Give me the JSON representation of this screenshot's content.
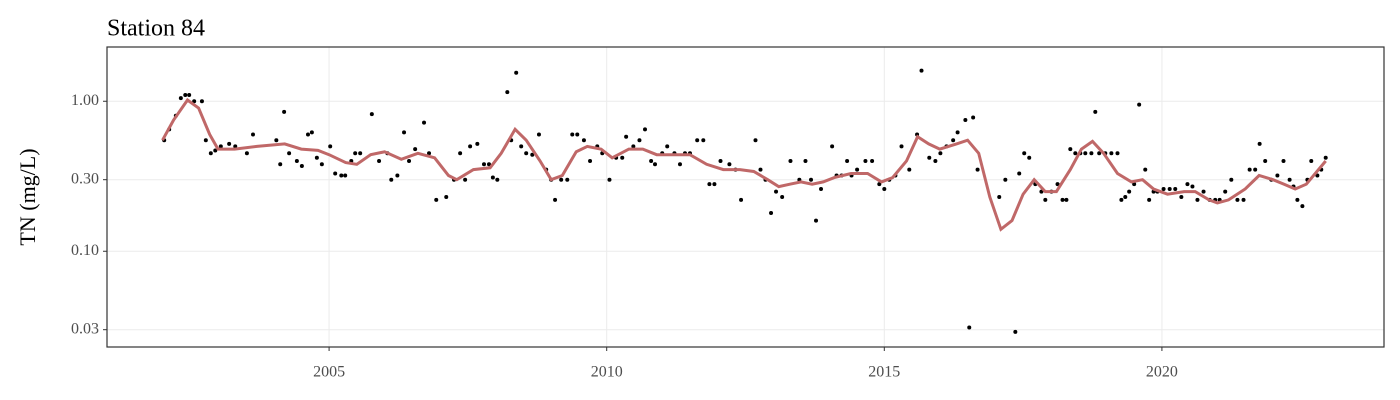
{
  "chart_data": {
    "type": "scatter",
    "title": "Station 84",
    "y_label": "TN (mg/L)",
    "log_y": true,
    "grid": true,
    "xlim": [
      2001,
      2024
    ],
    "xticks": [
      2005,
      2010,
      2015,
      2020
    ],
    "ylim": [
      0.023,
      2.3
    ],
    "yticks": [
      {
        "value": 0.03,
        "label": "0.03"
      },
      {
        "value": 0.1,
        "label": "0.10"
      },
      {
        "value": 0.3,
        "label": "0.30"
      },
      {
        "value": 1,
        "label": "1.00"
      }
    ],
    "series": [
      {
        "mode": "points",
        "color": "#000000",
        "x": [
          2002.03,
          2002.12,
          2002.24,
          2002.33,
          2002.41,
          2002.48,
          2002.57,
          2002.71,
          2002.78,
          2002.87,
          2002.95,
          2003.05,
          2003.2,
          2003.31,
          2003.52,
          2003.63,
          2004.05,
          2004.12,
          2004.19,
          2004.28,
          2004.42,
          2004.51,
          2004.62,
          2004.69,
          2004.78,
          2004.87,
          2005.02,
          2005.11,
          2005.22,
          2005.29,
          2005.4,
          2005.47,
          2005.56,
          2005.77,
          2005.9,
          2006.05,
          2006.12,
          2006.23,
          2006.35,
          2006.44,
          2006.55,
          2006.71,
          2006.8,
          2006.93,
          2007.11,
          2007.25,
          2007.36,
          2007.45,
          2007.54,
          2007.67,
          2007.79,
          2007.88,
          2007.95,
          2008.03,
          2008.21,
          2008.28,
          2008.37,
          2008.46,
          2008.55,
          2008.66,
          2008.78,
          2008.91,
          2009.0,
          2009.07,
          2009.18,
          2009.29,
          2009.38,
          2009.47,
          2009.59,
          2009.7,
          2009.83,
          2009.92,
          2010.05,
          2010.17,
          2010.28,
          2010.35,
          2010.48,
          2010.59,
          2010.69,
          2010.8,
          2010.87,
          2011.0,
          2011.09,
          2011.22,
          2011.32,
          2011.41,
          2011.5,
          2011.63,
          2011.74,
          2011.85,
          2011.94,
          2012.05,
          2012.21,
          2012.32,
          2012.42,
          2012.68,
          2012.77,
          2012.86,
          2012.96,
          2013.05,
          2013.16,
          2013.31,
          2013.47,
          2013.58,
          2013.68,
          2013.77,
          2013.86,
          2014.06,
          2014.14,
          2014.23,
          2014.33,
          2014.41,
          2014.51,
          2014.66,
          2014.78,
          2014.91,
          2015.0,
          2015.09,
          2015.2,
          2015.31,
          2015.45,
          2015.59,
          2015.67,
          2015.81,
          2015.92,
          2016.01,
          2016.12,
          2016.24,
          2016.32,
          2016.46,
          2016.53,
          2016.6,
          2016.68,
          2017.07,
          2017.18,
          2017.36,
          2017.43,
          2017.52,
          2017.61,
          2017.72,
          2017.83,
          2017.9,
          2018.01,
          2018.12,
          2018.21,
          2018.28,
          2018.35,
          2018.44,
          2018.53,
          2018.62,
          2018.73,
          2018.8,
          2018.87,
          2018.98,
          2019.09,
          2019.2,
          2019.27,
          2019.34,
          2019.41,
          2019.5,
          2019.59,
          2019.7,
          2019.77,
          2019.85,
          2019.92,
          2020.03,
          2020.14,
          2020.24,
          2020.35,
          2020.46,
          2020.55,
          2020.64,
          2020.75,
          2020.86,
          2020.96,
          2021.04,
          2021.14,
          2021.25,
          2021.36,
          2021.47,
          2021.58,
          2021.68,
          2021.76,
          2021.86,
          2021.97,
          2022.08,
          2022.19,
          2022.3,
          2022.37,
          2022.44,
          2022.53,
          2022.62,
          2022.69,
          2022.8,
          2022.87,
          2022.95
        ],
        "values": [
          0.55,
          0.65,
          0.8,
          1.05,
          1.1,
          1.1,
          1.0,
          1.0,
          0.55,
          0.45,
          0.47,
          0.5,
          0.52,
          0.5,
          0.45,
          0.6,
          0.55,
          0.38,
          0.85,
          0.45,
          0.4,
          0.37,
          0.6,
          0.62,
          0.42,
          0.38,
          0.5,
          0.33,
          0.32,
          0.32,
          0.4,
          0.45,
          0.45,
          0.82,
          0.4,
          0.45,
          0.3,
          0.32,
          0.62,
          0.4,
          0.48,
          0.72,
          0.45,
          0.22,
          0.23,
          0.3,
          0.45,
          0.3,
          0.5,
          0.52,
          0.38,
          0.38,
          0.31,
          0.3,
          1.15,
          0.55,
          1.55,
          0.5,
          0.45,
          0.44,
          0.6,
          0.35,
          0.3,
          0.22,
          0.3,
          0.3,
          0.6,
          0.6,
          0.55,
          0.4,
          0.5,
          0.45,
          0.3,
          0.42,
          0.42,
          0.58,
          0.5,
          0.55,
          0.65,
          0.4,
          0.38,
          0.45,
          0.5,
          0.45,
          0.38,
          0.45,
          0.45,
          0.55,
          0.55,
          0.28,
          0.28,
          0.4,
          0.38,
          0.35,
          0.22,
          0.55,
          0.35,
          0.3,
          0.18,
          0.25,
          0.23,
          0.4,
          0.3,
          0.4,
          0.3,
          0.16,
          0.26,
          0.5,
          0.32,
          0.32,
          0.4,
          0.32,
          0.35,
          0.4,
          0.4,
          0.28,
          0.26,
          0.3,
          0.32,
          0.5,
          0.35,
          0.6,
          1.6,
          0.42,
          0.4,
          0.45,
          0.5,
          0.55,
          0.62,
          0.75,
          0.031,
          0.78,
          0.35,
          0.23,
          0.3,
          0.029,
          0.33,
          0.45,
          0.42,
          0.28,
          0.25,
          0.22,
          0.25,
          0.28,
          0.22,
          0.22,
          0.48,
          0.45,
          0.45,
          0.45,
          0.45,
          0.85,
          0.45,
          0.45,
          0.45,
          0.45,
          0.22,
          0.23,
          0.25,
          0.28,
          0.95,
          0.35,
          0.22,
          0.25,
          0.25,
          0.26,
          0.26,
          0.26,
          0.23,
          0.28,
          0.27,
          0.22,
          0.25,
          0.22,
          0.22,
          0.22,
          0.25,
          0.3,
          0.22,
          0.22,
          0.35,
          0.35,
          0.52,
          0.4,
          0.3,
          0.32,
          0.4,
          0.3,
          0.27,
          0.22,
          0.2,
          0.3,
          0.4,
          0.32,
          0.35,
          0.42
        ]
      },
      {
        "mode": "line",
        "color": "#c06868",
        "x": [
          2002.0,
          2002.2,
          2002.45,
          2002.65,
          2002.85,
          2003.0,
          2003.3,
          2003.7,
          2004.2,
          2004.5,
          2004.8,
          2005.0,
          2005.3,
          2005.5,
          2005.75,
          2006.0,
          2006.3,
          2006.6,
          2006.9,
          2007.15,
          2007.3,
          2007.6,
          2007.9,
          2008.1,
          2008.35,
          2008.55,
          2008.8,
          2009.0,
          2009.2,
          2009.45,
          2009.65,
          2009.9,
          2010.1,
          2010.4,
          2010.65,
          2010.9,
          2011.2,
          2011.5,
          2011.8,
          2012.1,
          2012.4,
          2012.65,
          2012.9,
          2013.1,
          2013.3,
          2013.5,
          2013.7,
          2013.9,
          2014.1,
          2014.4,
          2014.7,
          2014.95,
          2015.15,
          2015.4,
          2015.6,
          2015.8,
          2016.0,
          2016.3,
          2016.5,
          2016.7,
          2016.9,
          2017.1,
          2017.3,
          2017.5,
          2017.7,
          2017.9,
          2018.1,
          2018.35,
          2018.55,
          2018.75,
          2018.95,
          2019.2,
          2019.45,
          2019.65,
          2019.85,
          2020.1,
          2020.4,
          2020.6,
          2020.85,
          2021.0,
          2021.2,
          2021.5,
          2021.75,
          2022.0,
          2022.2,
          2022.4,
          2022.6,
          2022.95
        ],
        "values": [
          0.55,
          0.75,
          1.02,
          0.9,
          0.6,
          0.48,
          0.48,
          0.5,
          0.52,
          0.48,
          0.47,
          0.44,
          0.39,
          0.38,
          0.44,
          0.46,
          0.41,
          0.45,
          0.42,
          0.32,
          0.3,
          0.35,
          0.36,
          0.45,
          0.65,
          0.55,
          0.4,
          0.3,
          0.32,
          0.46,
          0.5,
          0.48,
          0.42,
          0.48,
          0.48,
          0.44,
          0.44,
          0.44,
          0.38,
          0.35,
          0.35,
          0.34,
          0.3,
          0.27,
          0.28,
          0.29,
          0.28,
          0.29,
          0.31,
          0.33,
          0.33,
          0.29,
          0.31,
          0.4,
          0.58,
          0.52,
          0.48,
          0.52,
          0.55,
          0.45,
          0.23,
          0.14,
          0.16,
          0.24,
          0.3,
          0.25,
          0.25,
          0.35,
          0.48,
          0.54,
          0.45,
          0.33,
          0.29,
          0.3,
          0.26,
          0.24,
          0.25,
          0.25,
          0.22,
          0.21,
          0.22,
          0.26,
          0.32,
          0.3,
          0.28,
          0.26,
          0.28,
          0.4
        ]
      }
    ]
  }
}
